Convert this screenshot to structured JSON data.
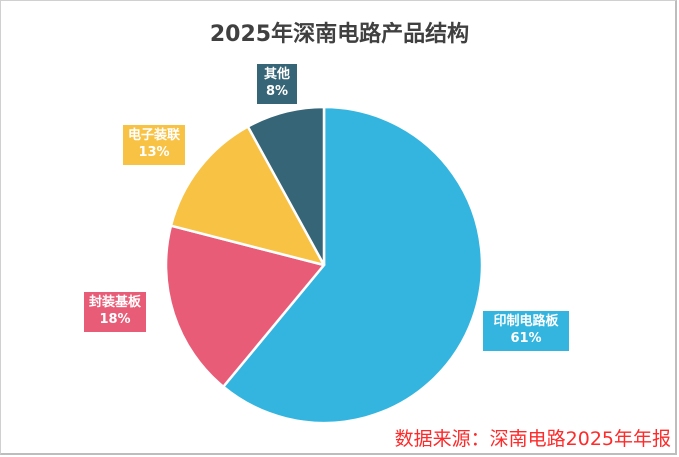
{
  "chart_data": {
    "type": "pie",
    "title": "2025年深南电路产品结构",
    "categories": [
      "印制电路板",
      "封装基板",
      "电子装联",
      "其他"
    ],
    "values": [
      61,
      18,
      13,
      8
    ],
    "unit": "%",
    "colors": [
      "#33b5e0",
      "#e95c77",
      "#f8c245",
      "#356576"
    ],
    "start_angle_deg": 0,
    "direction": "clockwise",
    "legend": "none",
    "data_labels": [
      {
        "name": "印制电路板",
        "value": "61%"
      },
      {
        "name": "封装基板",
        "value": "18%"
      },
      {
        "name": "电子装联",
        "value": "13%"
      },
      {
        "name": "其他",
        "value": "8%"
      }
    ]
  },
  "title": "2025年深南电路产品结构",
  "labels": {
    "pcb": {
      "name": "印制电路板",
      "pct": "61%"
    },
    "substrate": {
      "name": "封装基板",
      "pct": "18%"
    },
    "assembly": {
      "name": "电子装联",
      "pct": "13%"
    },
    "other": {
      "name": "其他",
      "pct": "8%"
    }
  },
  "source": "数据来源：深南电路2025年年报"
}
